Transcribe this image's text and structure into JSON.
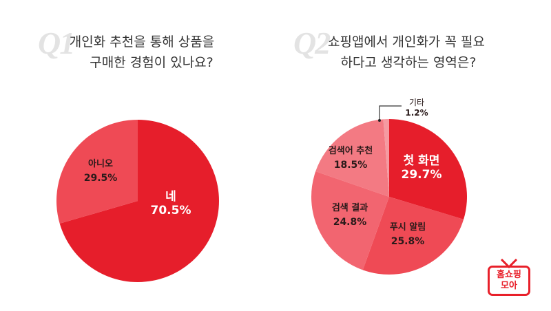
{
  "q1": {
    "mark": "Q1",
    "title_line1": "개인화 추천을 통해 상품을",
    "title_line2": "구매한 경험이 있나요?"
  },
  "q2": {
    "mark": "Q2",
    "title_line1": "쇼핑앱에서 개인화가 꼭 필요",
    "title_line2": "하다고 생각하는 영역은?"
  },
  "logo": {
    "line1": "홈쇼핑",
    "line2": "모아",
    "color": "#e8202a"
  },
  "chart_data": [
    {
      "type": "pie",
      "title": "개인화 추천을 통해 상품을 구매한 경험이 있나요?",
      "categories": [
        "네",
        "아니오"
      ],
      "values": [
        70.5,
        29.5
      ],
      "labels": [
        "70.5%",
        "29.5%"
      ],
      "colors": [
        "#e61e2b",
        "#ef4a55"
      ],
      "legend": "none",
      "start_angle_deg": 0,
      "direction": "clockwise"
    },
    {
      "type": "pie",
      "title": "쇼핑앱에서 개인화가 꼭 필요하다고 생각하는 영역은?",
      "categories": [
        "첫 화면",
        "푸시 알림",
        "검색 결과",
        "검색어 추천",
        "기타"
      ],
      "values": [
        29.7,
        25.8,
        24.8,
        18.5,
        1.2
      ],
      "labels": [
        "29.7%",
        "25.8%",
        "24.8%",
        "18.5%",
        "1.2%"
      ],
      "colors": [
        "#e61e2b",
        "#ef4a55",
        "#f26570",
        "#f37a83",
        "#f59aa1"
      ],
      "legend": "none",
      "annotations": [
        "기타 1.2% (callout line)"
      ],
      "start_angle_deg": 0,
      "direction": "clockwise"
    }
  ]
}
